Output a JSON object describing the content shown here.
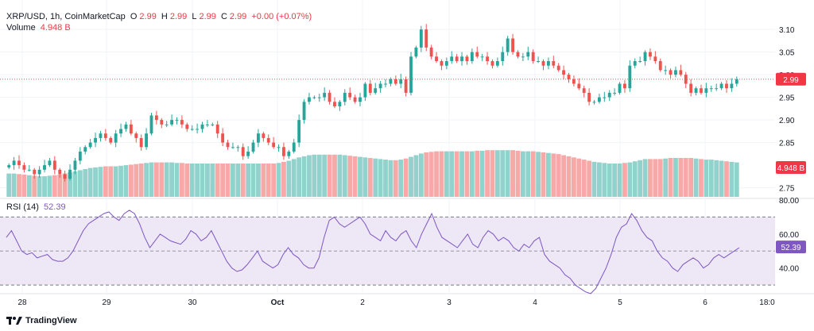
{
  "header": {
    "symbol": "XRP/USD, 1h, CoinMarketCap",
    "open_label": "O",
    "open": "2.99",
    "high_label": "H",
    "high": "2.99",
    "low_label": "L",
    "low": "2.99",
    "close_label": "C",
    "close": "2.99",
    "change": "+0.00 (+0.07%)",
    "volume_label": "Volume",
    "volume": "4.948 B"
  },
  "rsi_header": {
    "label": "RSI (14)",
    "value": "52.39"
  },
  "price_badge": "2.99",
  "volume_badge": "4.948 B",
  "rsi_badge": "52.39",
  "footer": {
    "brand": "TradingView"
  },
  "colors": {
    "up": "#26a69a",
    "down": "#ef5350",
    "volume_up": "#92d2cc",
    "volume_down": "#f7a9a7",
    "rsi_line": "#7e57c2",
    "rsi_band": "#ede7f6",
    "badge_red": "#f23645",
    "rsi_badge": "#7e57c2"
  },
  "chart_data": {
    "type": "candlestick",
    "title": "XRP/USD, 1h, CoinMarketCap",
    "price_axis": {
      "ticks": [
        "3.10",
        "3.05",
        "3.00",
        "2.95",
        "2.90",
        "2.85",
        "2.75"
      ],
      "ylim": [
        2.73,
        3.13
      ]
    },
    "x_axis": {
      "labels": [
        "28",
        "29",
        "30",
        "Oct",
        "2",
        "3",
        "4",
        "5",
        "6",
        "18:0"
      ]
    },
    "price_path": [
      2.8,
      2.81,
      2.8,
      2.79,
      2.79,
      2.78,
      2.79,
      2.8,
      2.81,
      2.79,
      2.78,
      2.77,
      2.79,
      2.81,
      2.83,
      2.84,
      2.85,
      2.86,
      2.87,
      2.86,
      2.85,
      2.87,
      2.88,
      2.89,
      2.87,
      2.86,
      2.84,
      2.87,
      2.91,
      2.9,
      2.89,
      2.89,
      2.9,
      2.9,
      2.89,
      2.88,
      2.88,
      2.88,
      2.89,
      2.89,
      2.89,
      2.87,
      2.85,
      2.84,
      2.84,
      2.84,
      2.82,
      2.83,
      2.85,
      2.87,
      2.86,
      2.85,
      2.84,
      2.84,
      2.82,
      2.83,
      2.85,
      2.9,
      2.94,
      2.95,
      2.95,
      2.95,
      2.96,
      2.94,
      2.93,
      2.94,
      2.96,
      2.95,
      2.94,
      2.95,
      2.98,
      2.96,
      2.97,
      2.98,
      2.98,
      2.99,
      2.98,
      2.99,
      2.96,
      3.04,
      3.06,
      3.1,
      3.06,
      3.04,
      3.03,
      3.02,
      3.03,
      3.04,
      3.03,
      3.04,
      3.03,
      3.05,
      3.04,
      3.04,
      3.03,
      3.02,
      3.03,
      3.05,
      3.08,
      3.05,
      3.04,
      3.04,
      3.05,
      3.03,
      3.03,
      3.02,
      3.03,
      3.02,
      3.01,
      3.0,
      2.99,
      2.98,
      2.97,
      2.96,
      2.94,
      2.94,
      2.95,
      2.95,
      2.96,
      2.96,
      2.98,
      2.97,
      3.02,
      3.03,
      3.03,
      3.05,
      3.04,
      3.03,
      3.01,
      3.01,
      3.0,
      3.01,
      3.0,
      2.98,
      2.96,
      2.97,
      2.96,
      2.97,
      2.97,
      2.97,
      2.98,
      2.97,
      2.98,
      2.99
    ],
    "volume_path": [
      0.42,
      0.42,
      0.41,
      0.4,
      0.39,
      0.38,
      0.37,
      0.37,
      0.38,
      0.39,
      0.4,
      0.42,
      0.44,
      0.46,
      0.48,
      0.5,
      0.52,
      0.53,
      0.54,
      0.55,
      0.55,
      0.55,
      0.56,
      0.57,
      0.58,
      0.59,
      0.6,
      0.61,
      0.62,
      0.62,
      0.62,
      0.62,
      0.62,
      0.61,
      0.61,
      0.6,
      0.6,
      0.6,
      0.6,
      0.6,
      0.6,
      0.6,
      0.6,
      0.6,
      0.6,
      0.6,
      0.6,
      0.6,
      0.6,
      0.6,
      0.6,
      0.6,
      0.6,
      0.61,
      0.63,
      0.65,
      0.68,
      0.71,
      0.73,
      0.75,
      0.76,
      0.76,
      0.76,
      0.76,
      0.76,
      0.76,
      0.75,
      0.74,
      0.73,
      0.72,
      0.71,
      0.7,
      0.69,
      0.68,
      0.67,
      0.66,
      0.66,
      0.67,
      0.69,
      0.72,
      0.75,
      0.78,
      0.8,
      0.81,
      0.82,
      0.82,
      0.82,
      0.82,
      0.82,
      0.82,
      0.82,
      0.82,
      0.83,
      0.83,
      0.84,
      0.84,
      0.84,
      0.84,
      0.84,
      0.84,
      0.83,
      0.82,
      0.82,
      0.82,
      0.81,
      0.8,
      0.79,
      0.78,
      0.77,
      0.75,
      0.73,
      0.71,
      0.69,
      0.67,
      0.65,
      0.63,
      0.62,
      0.61,
      0.6,
      0.6,
      0.6,
      0.61,
      0.62,
      0.64,
      0.66,
      0.68,
      0.68,
      0.68,
      0.68,
      0.69,
      0.7,
      0.7,
      0.7,
      0.7,
      0.7,
      0.69,
      0.68,
      0.67,
      0.67,
      0.66,
      0.65,
      0.64,
      0.63,
      0.62
    ],
    "rsi": {
      "label": "RSI (14)",
      "ticks": [
        "80.00",
        "60.00",
        "40.00"
      ],
      "upper": 70,
      "mid": 50,
      "lower": 30,
      "ylim": [
        24,
        80
      ],
      "path": [
        58,
        62,
        56,
        50,
        48,
        49,
        46,
        47,
        48,
        45,
        44,
        44,
        46,
        50,
        56,
        62,
        66,
        68,
        70,
        72,
        73,
        70,
        68,
        72,
        74,
        72,
        66,
        58,
        52,
        56,
        60,
        58,
        56,
        55,
        54,
        57,
        62,
        60,
        56,
        58,
        62,
        56,
        50,
        44,
        40,
        38,
        39,
        42,
        46,
        50,
        44,
        42,
        40,
        42,
        48,
        52,
        48,
        46,
        42,
        40,
        40,
        46,
        58,
        68,
        70,
        66,
        64,
        66,
        68,
        70,
        66,
        60,
        58,
        56,
        62,
        58,
        56,
        60,
        62,
        56,
        52,
        60,
        66,
        72,
        64,
        58,
        56,
        54,
        52,
        56,
        60,
        54,
        52,
        58,
        62,
        60,
        56,
        58,
        56,
        52,
        50,
        54,
        52,
        56,
        58,
        48,
        44,
        42,
        40,
        36,
        34,
        30,
        28,
        26,
        25,
        28,
        34,
        40,
        48,
        58,
        64,
        66,
        72,
        68,
        62,
        58,
        56,
        50,
        46,
        44,
        40,
        38,
        42,
        44,
        46,
        44,
        40,
        42,
        46,
        48,
        46,
        48,
        50,
        52
      ]
    }
  }
}
